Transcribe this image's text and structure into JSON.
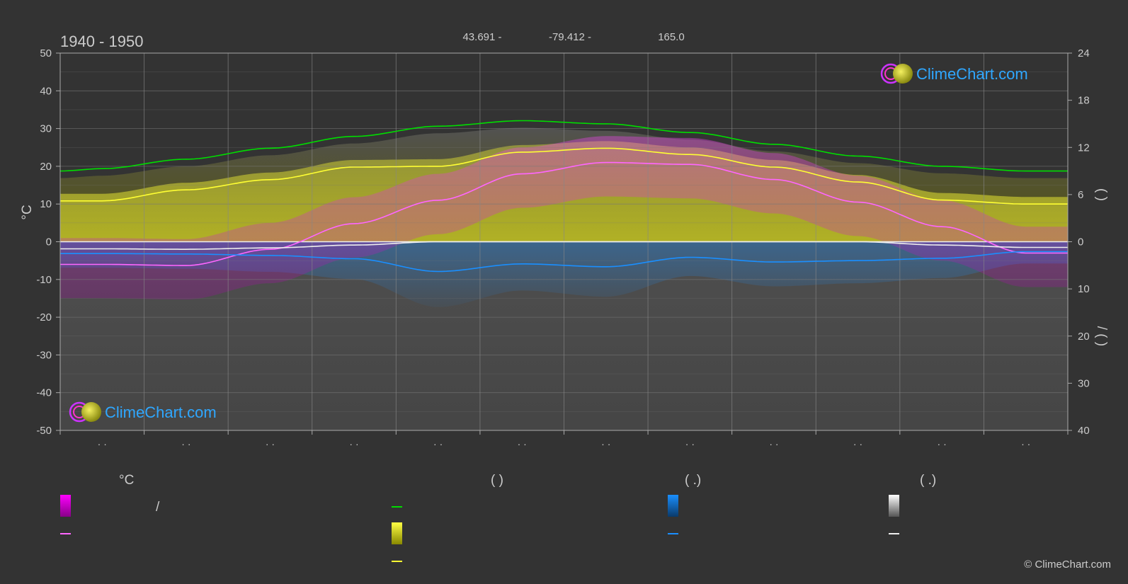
{
  "header": {
    "period": "1940 - 1950",
    "latitude": "43.691 -",
    "longitude": "-79.412 -",
    "elevation": "165.0"
  },
  "brand": {
    "name": "ClimeChart.com",
    "copyright": "© ClimeChart.com"
  },
  "colors": {
    "background": "#333333",
    "grid": "#555555",
    "daylight": "#00dd00",
    "sunshine": "#ffff33",
    "temp_mean": "#ff66ff",
    "temp_range": "#dd00dd",
    "rain": "#1a8fff",
    "snow": "#eeeeee",
    "brand": "#2fa7ff"
  },
  "chart_data": {
    "type": "line",
    "title": "1940 - 1950",
    "xlabel": "",
    "ylabel": "°C",
    "ylim": [
      -50,
      50
    ],
    "yticks": [
      50,
      40,
      30,
      20,
      10,
      0,
      -10,
      -20,
      -30,
      -40,
      -50
    ],
    "right_axis_top": {
      "ticks": [
        24,
        18,
        12,
        6,
        0
      ],
      "label": "(   )"
    },
    "right_axis_bottom": {
      "ticks": [
        0,
        10,
        20,
        30,
        40
      ],
      "label": "/ (   )"
    },
    "x_tick_labels": [
      "· ·",
      "· ·",
      "· ·",
      "· ·",
      "· ·",
      "· ·",
      "· ·",
      "· ·",
      "· ·",
      "· ·",
      "· ·",
      "· ·"
    ],
    "month_mid": [
      0.5,
      1.5,
      2.5,
      3.5,
      4.5,
      5.5,
      6.5,
      7.5,
      8.5,
      9.5,
      10.5,
      11.5
    ],
    "grid": true,
    "series": [
      {
        "key": "daylight",
        "axis": "hours",
        "x": [
          0,
          0.5,
          1.5,
          2.5,
          3.5,
          4.5,
          5.5,
          6.5,
          7.5,
          8.5,
          9.5,
          10.5,
          11.5,
          12
        ],
        "values": [
          9.0,
          9.3,
          10.5,
          11.9,
          13.4,
          14.7,
          15.4,
          15.0,
          13.9,
          12.4,
          10.9,
          9.6,
          9.0,
          9.0
        ]
      },
      {
        "key": "sunshine",
        "axis": "hours",
        "x": [
          0,
          0.5,
          1.5,
          2.5,
          3.5,
          4.5,
          5.5,
          6.5,
          7.5,
          8.5,
          9.5,
          10.5,
          11.5,
          12
        ],
        "values": [
          5.2,
          5.2,
          6.6,
          7.9,
          9.5,
          9.6,
          11.4,
          11.9,
          11.1,
          9.5,
          7.6,
          5.3,
          4.8,
          4.8
        ]
      },
      {
        "key": "temp_mean",
        "axis": "temp",
        "x": [
          0,
          0.5,
          1.5,
          2.5,
          3.5,
          4.5,
          5.5,
          6.5,
          7.5,
          8.5,
          9.5,
          10.5,
          11.5,
          12
        ],
        "values": [
          -6.0,
          -6.0,
          -6.3,
          -2.0,
          4.8,
          11.0,
          18.0,
          21.0,
          20.5,
          16.5,
          10.5,
          4.0,
          -3.0,
          -3.0
        ]
      },
      {
        "key": "rain",
        "axis": "precip",
        "x": [
          0,
          0.5,
          1.5,
          2.5,
          3.5,
          4.5,
          5.5,
          6.5,
          7.5,
          8.5,
          9.5,
          10.5,
          11.5,
          12
        ],
        "values": [
          2.5,
          2.5,
          2.6,
          2.9,
          3.6,
          6.3,
          4.7,
          5.3,
          3.3,
          4.3,
          4.0,
          3.5,
          2.1,
          2.1
        ]
      },
      {
        "key": "snow",
        "axis": "precip",
        "x": [
          0,
          0.5,
          1.5,
          2.5,
          3.5,
          4.5,
          5.5,
          6.5,
          7.5,
          8.5,
          9.5,
          10.5,
          11.5,
          12
        ],
        "values": [
          1.5,
          1.5,
          1.6,
          1.3,
          0.7,
          0.0,
          0.0,
          0.0,
          0.0,
          0.0,
          0.0,
          0.7,
          1.2,
          1.2
        ]
      }
    ]
  },
  "legend": {
    "columns": [
      {
        "header": "°C",
        "items": [
          {
            "kind": "gradient",
            "color": "#dd00dd",
            "label": "/"
          },
          {
            "kind": "line",
            "color": "#ff66ff",
            "label": ""
          }
        ]
      },
      {
        "header": "(          )",
        "items": [
          {
            "kind": "line",
            "color": "#00dd00",
            "label": ""
          },
          {
            "kind": "gradient",
            "color": "#ffff33",
            "label": ""
          },
          {
            "kind": "line",
            "color": "#ffff33",
            "label": ""
          }
        ]
      },
      {
        "header": "(   .)",
        "items": [
          {
            "kind": "gradient",
            "color": "#1a8fff",
            "label": ""
          },
          {
            "kind": "line",
            "color": "#1a8fff",
            "label": ""
          }
        ]
      },
      {
        "header": "(   .)",
        "items": [
          {
            "kind": "gradient",
            "color": "#eeeeee",
            "label": ""
          },
          {
            "kind": "line",
            "color": "#eeeeee",
            "label": ""
          }
        ]
      }
    ]
  }
}
